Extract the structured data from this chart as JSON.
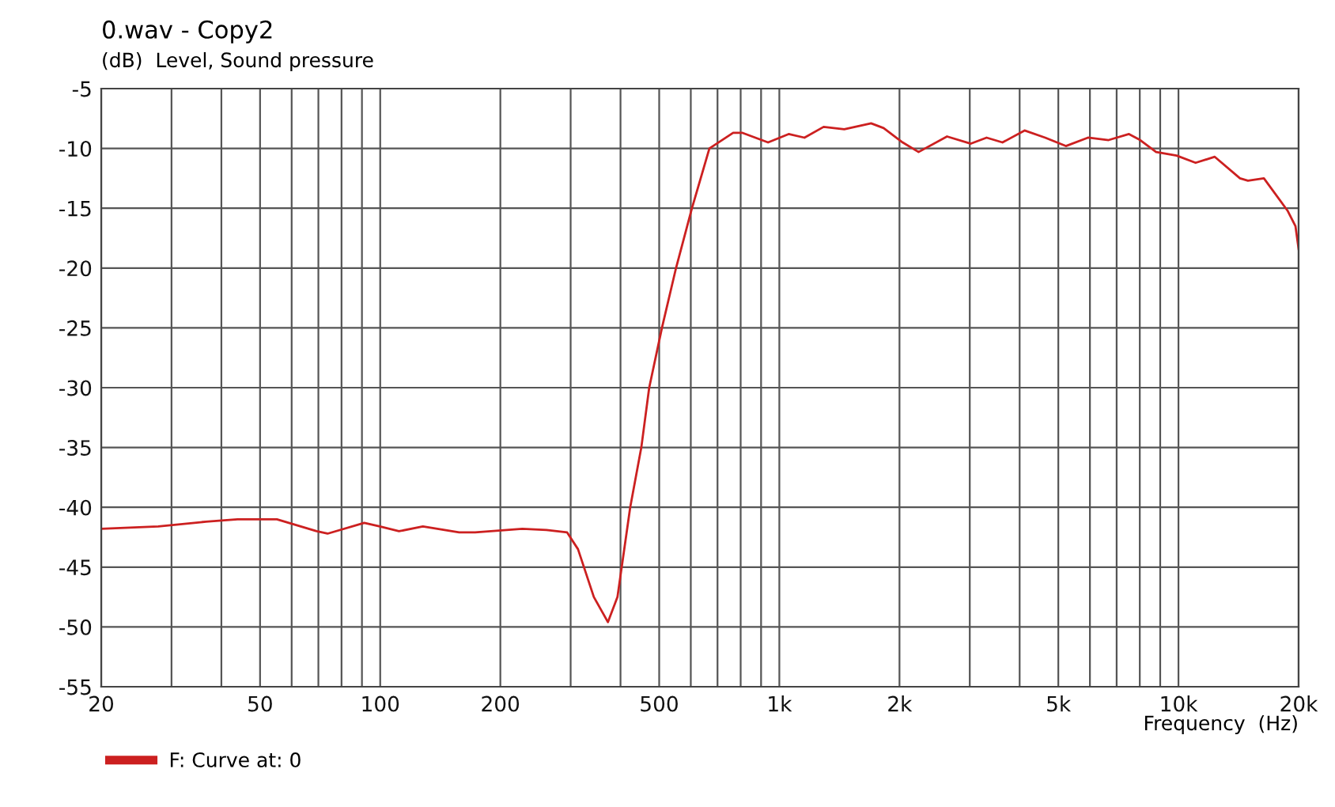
{
  "chart_data": {
    "type": "line",
    "title": "0.wav - Copy2",
    "ylabel": "(dB)  Level, Sound pressure",
    "xlabel": "Frequency  (Hz)",
    "log": "x",
    "grid": true,
    "legend": "bottom left",
    "marker": "none",
    "line_style": "solid",
    "xlim": [
      20,
      20000
    ],
    "ylim": [
      -55,
      -5
    ],
    "xticks": [
      20,
      {
        "value": 30,
        "label": null
      },
      {
        "value": 40,
        "label": null
      },
      50,
      {
        "value": 60,
        "label": null
      },
      {
        "value": 70,
        "label": null
      },
      {
        "value": 80,
        "label": null
      },
      {
        "value": 90,
        "label": null
      },
      100,
      200,
      {
        "value": 300,
        "label": null
      },
      {
        "value": 400,
        "label": null
      },
      500,
      {
        "value": 600,
        "label": null
      },
      {
        "value": 700,
        "label": null
      },
      {
        "value": 800,
        "label": null
      },
      {
        "value": 900,
        "label": null
      },
      {
        "value": 1000,
        "label": "1k"
      },
      {
        "value": 2000,
        "label": "2k"
      },
      {
        "value": 3000,
        "label": null
      },
      {
        "value": 4000,
        "label": null
      },
      {
        "value": 5000,
        "label": "5k"
      },
      {
        "value": 6000,
        "label": null
      },
      {
        "value": 7000,
        "label": null
      },
      {
        "value": 8000,
        "label": null
      },
      {
        "value": 9000,
        "label": null
      },
      {
        "value": 10000,
        "label": "10k"
      },
      {
        "value": 20000,
        "label": "20k"
      }
    ],
    "yticks": [
      -55,
      -50,
      -45,
      -40,
      -35,
      -30,
      -25,
      -20,
      -15,
      -10,
      -5
    ],
    "series": [
      {
        "name": "F: Curve at: 0",
        "color": "#cc2020",
        "x": [
          20,
          27.8,
          36.6,
          43.9,
          55.1,
          69.3,
          73.8,
          91.2,
          99.8,
          111.4,
          127.9,
          157.7,
          172.9,
          227,
          261,
          294,
          313,
          343,
          372,
          393,
          423,
          451,
          472,
          508,
          551,
          604,
          668,
          766,
          809,
          937,
          1055,
          1156,
          1291,
          1454,
          1698,
          1825,
          2037,
          2233,
          2631,
          3019,
          3306,
          3623,
          4115,
          4635,
          5222,
          5933,
          6683,
          7517,
          8018,
          8790,
          9890,
          11040,
          12330,
          14260,
          14930,
          16370,
          18760,
          19640,
          20000
        ],
        "values": [
          -41.8,
          -41.6,
          -41.2,
          -41.0,
          -41.0,
          -42.0,
          -42.2,
          -41.3,
          -41.6,
          -42.0,
          -41.6,
          -42.1,
          -42.1,
          -41.8,
          -41.9,
          -42.1,
          -43.5,
          -47.5,
          -49.6,
          -47.5,
          -40,
          -35,
          -30,
          -25,
          -20,
          -15,
          -10,
          -8.7,
          -8.7,
          -9.5,
          -8.8,
          -9.1,
          -8.2,
          -8.4,
          -7.9,
          -8.3,
          -9.5,
          -10.3,
          -9.0,
          -9.6,
          -9.1,
          -9.5,
          -8.5,
          -9.1,
          -9.8,
          -9.1,
          -9.3,
          -8.8,
          -9.3,
          -10.3,
          -10.6,
          -11.2,
          -10.7,
          -12.5,
          -12.7,
          -12.5,
          -15.2,
          -16.5,
          -18.4
        ]
      }
    ]
  }
}
